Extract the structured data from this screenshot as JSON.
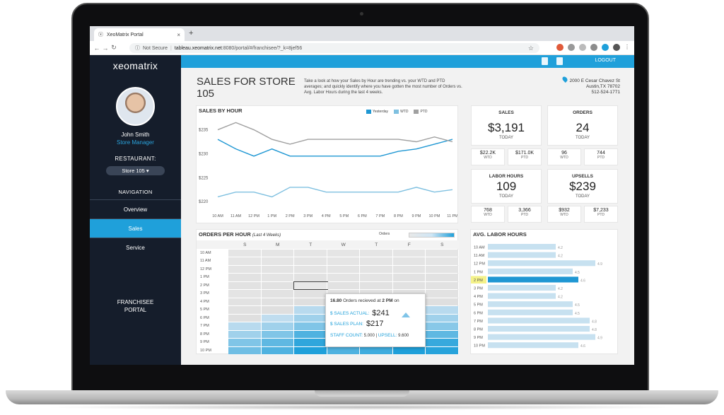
{
  "browser": {
    "tab_title": "XeoMatrix Portal",
    "tab_close": "×",
    "new_tab": "+",
    "not_secure": "Not Secure",
    "url_host": "tableau.xeomatrix.net",
    "url_path": ":8080/portal/#/franchisee/?_k=8jef56"
  },
  "sidebar": {
    "logo": "xeomatrix",
    "user_name": "John Smith",
    "user_role": "Store Manager",
    "restaurant_label": "RESTAURANT:",
    "store_select": "Store 105 ▾",
    "navigation_label": "NAVIGATION",
    "nav": [
      "Overview",
      "Sales",
      "Service"
    ],
    "active_nav": "Sales",
    "portal_line1": "FRANCHISEE",
    "portal_line2": "PORTAL"
  },
  "header": {
    "logout": "LOGOUT"
  },
  "page": {
    "title": "SALES FOR STORE 105",
    "intro": "Take a look at how your Sales by Hour are trending vs. your WTD and PTD averages; and quickly identify where you have gotten the most number of Orders vs. Avg. Labor Hours during the last 4 weeks.",
    "address_line1": "2000 E Cesar Chavez St",
    "address_line2": "Austin,TX 78702",
    "phone": "512-524-1771"
  },
  "kpis": {
    "sales": {
      "label": "SALES",
      "value": "$3,191",
      "sub": "TODAY",
      "wtd": "$22.2K",
      "ptd": "$171.0K"
    },
    "orders": {
      "label": "ORDERS",
      "value": "24",
      "sub": "TODAY",
      "wtd": "96",
      "ptd": "744"
    },
    "labor": {
      "label": "LABOR HOURS",
      "value": "109",
      "sub": "TODAY",
      "wtd": "768",
      "ptd": "3,366"
    },
    "upsells": {
      "label": "UPSELLS",
      "value": "$239",
      "sub": "TODAY",
      "wtd": "$932",
      "ptd": "$7,233"
    },
    "wtd_label": "WTD",
    "ptd_label": "PTD"
  },
  "sales_by_hour": {
    "title": "SALES BY HOUR",
    "legend": [
      "Yesterday",
      "WTD",
      "PTD"
    ]
  },
  "orders_per_hour": {
    "title": "ORDERS PER HOUR",
    "subtitle": "(Last 4 Weeks)",
    "key_label": "Orders",
    "days": [
      "S",
      "M",
      "T",
      "W",
      "T",
      "F",
      "S"
    ],
    "hours": [
      "10 AM",
      "11 AM",
      "12 PM",
      "1 PM",
      "2 PM",
      "3 PM",
      "4 PM",
      "5 PM",
      "6 PM",
      "7 PM",
      "8 PM",
      "9 PM",
      "10 PM"
    ]
  },
  "tooltip": {
    "orders_value": "16.80",
    "orders_text": " Orders recieved at ",
    "orders_time": "2 PM",
    "orders_on": " on",
    "sales_actual_label": "$ SALES ACTUAL:",
    "sales_actual": "$241",
    "sales_plan_label": "$ SALES PLAN:",
    "sales_plan": "$217",
    "staff_label": "STAFF COUNT:",
    "staff_value": "5.000",
    "upsell_label": "UPSELL:",
    "upsell_value": "9.600"
  },
  "avg_labor_hours": {
    "title": "AVG. LABOR HOURS"
  },
  "chart_data": [
    {
      "type": "line",
      "title": "SALES BY HOUR",
      "x": [
        "10 AM",
        "11 AM",
        "12 PM",
        "1 PM",
        "2 PM",
        "3 PM",
        "4 PM",
        "5 PM",
        "6 PM",
        "7 PM",
        "8 PM",
        "9 PM",
        "10 PM",
        "11 PM"
      ],
      "ylim": [
        219,
        237
      ],
      "yticks": [
        "$220",
        "$225",
        "$230",
        "$235"
      ],
      "series": [
        {
          "name": "Yesterday",
          "color": "#1f97d3",
          "values": [
            233,
            231,
            229.5,
            231,
            229.5,
            229.5,
            229.5,
            229.5,
            229.5,
            229.5,
            230.5,
            231,
            232,
            233
          ]
        },
        {
          "name": "WTD",
          "color": "#7fc0e0",
          "values": [
            221,
            222,
            222,
            221,
            223,
            223,
            222,
            222,
            222,
            222,
            222,
            223,
            222,
            222.5
          ]
        },
        {
          "name": "PTD",
          "color": "#a0a0a0",
          "values": [
            235,
            236.5,
            235,
            233,
            232,
            233,
            233,
            233,
            233,
            233,
            233,
            232.5,
            233.5,
            232.5
          ]
        }
      ]
    },
    {
      "type": "heatmap",
      "title": "ORDERS PER HOUR",
      "x": [
        "S",
        "M",
        "T",
        "W",
        "T",
        "F",
        "S"
      ],
      "y": [
        "10 AM",
        "11 AM",
        "12 PM",
        "1 PM",
        "2 PM",
        "3 PM",
        "4 PM",
        "5 PM",
        "6 PM",
        "7 PM",
        "8 PM",
        "9 PM",
        "10 PM"
      ],
      "values": [
        [
          2,
          2,
          2,
          2,
          2,
          2,
          2
        ],
        [
          2,
          2,
          3,
          2,
          2,
          3,
          2
        ],
        [
          3,
          3,
          3,
          3,
          3,
          3,
          3
        ],
        [
          4,
          3,
          4,
          3,
          3,
          4,
          4
        ],
        [
          4,
          4,
          16.8,
          4,
          4,
          4,
          4
        ],
        [
          3,
          4,
          5,
          4,
          4,
          5,
          4
        ],
        [
          4,
          5,
          6,
          5,
          5,
          6,
          6
        ],
        [
          5,
          6,
          9,
          7,
          7,
          9,
          9
        ],
        [
          6,
          8,
          12,
          9,
          9,
          12,
          12
        ],
        [
          9,
          12,
          16,
          12,
          12,
          16,
          15
        ],
        [
          12,
          16,
          22,
          16,
          17,
          21,
          20
        ],
        [
          16,
          20,
          26,
          20,
          21,
          26,
          25
        ],
        [
          18,
          22,
          28,
          22,
          24,
          28,
          27
        ]
      ]
    },
    {
      "type": "bar",
      "title": "AVG. LABOR HOURS",
      "categories": [
        "10 AM",
        "11 AM",
        "12 PM",
        "1 PM",
        "2 PM",
        "3 PM",
        "4 PM",
        "5 PM",
        "6 PM",
        "7 PM",
        "8 PM",
        "9 PM",
        "10 PM"
      ],
      "values": [
        4.2,
        4.2,
        4.9,
        4.5,
        4.6,
        4.2,
        4.2,
        4.5,
        4.5,
        4.8,
        4.8,
        4.9,
        4.6
      ],
      "highlight": "2 PM"
    }
  ]
}
